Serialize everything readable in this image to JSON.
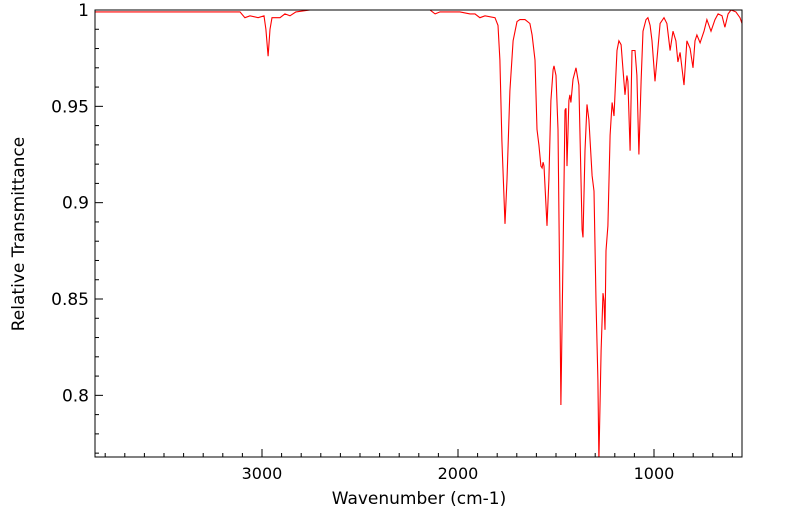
{
  "chart_data": {
    "type": "line",
    "title": "",
    "xlabel": "Wavenumber (cm-1)",
    "ylabel": "Relative Transmittance",
    "xlim": [
      3852,
      551
    ],
    "ylim": [
      0.768,
      1.0
    ],
    "x_ticks": [
      3000,
      2000,
      1000
    ],
    "x_tick_labels": [
      "3000",
      "2000",
      "1000"
    ],
    "y_ticks": [
      0.8,
      0.85,
      0.9,
      0.95,
      1
    ],
    "y_tick_labels": [
      "0.8",
      "0.85",
      "0.9",
      "0.95",
      "1"
    ],
    "grid": false,
    "series": [
      {
        "name": "spectrum",
        "color": "#ff0000",
        "x": [
          3852,
          3112,
          3087,
          3061,
          3020,
          2990,
          2980,
          2969,
          2959,
          2949,
          2908,
          2883,
          2857,
          2827,
          2755,
          2143,
          2117,
          2092,
          1990,
          1939,
          1913,
          1888,
          1862,
          1811,
          1796,
          1786,
          1776,
          1760,
          1750,
          1735,
          1719,
          1699,
          1684,
          1658,
          1633,
          1622,
          1607,
          1597,
          1587,
          1577,
          1571,
          1566,
          1561,
          1546,
          1536,
          1526,
          1515,
          1510,
          1500,
          1490,
          1480,
          1475,
          1464,
          1454,
          1449,
          1444,
          1434,
          1429,
          1424,
          1413,
          1398,
          1383,
          1367,
          1362,
          1352,
          1342,
          1332,
          1316,
          1306,
          1296,
          1286,
          1281,
          1270,
          1260,
          1255,
          1250,
          1245,
          1235,
          1224,
          1214,
          1204,
          1189,
          1179,
          1168,
          1158,
          1148,
          1138,
          1133,
          1122,
          1112,
          1097,
          1087,
          1077,
          1066,
          1056,
          1041,
          1031,
          1020,
          1010,
          995,
          985,
          969,
          949,
          934,
          918,
          903,
          888,
          878,
          867,
          847,
          832,
          816,
          801,
          791,
          781,
          765,
          745,
          730,
          709,
          689,
          673,
          653,
          638,
          622,
          607,
          582,
          561,
          551
        ],
        "y": [
          0.999,
          0.999,
          0.996,
          0.997,
          0.996,
          0.997,
          0.99,
          0.976,
          0.99,
          0.996,
          0.996,
          0.998,
          0.997,
          0.999,
          1.0,
          1.0,
          0.998,
          0.999,
          0.999,
          0.998,
          0.998,
          0.996,
          0.997,
          0.996,
          0.992,
          0.974,
          0.932,
          0.889,
          0.912,
          0.958,
          0.984,
          0.994,
          0.995,
          0.995,
          0.993,
          0.987,
          0.974,
          0.938,
          0.93,
          0.919,
          0.918,
          0.921,
          0.919,
          0.888,
          0.912,
          0.953,
          0.969,
          0.971,
          0.966,
          0.938,
          0.849,
          0.795,
          0.875,
          0.948,
          0.949,
          0.919,
          0.953,
          0.956,
          0.952,
          0.964,
          0.97,
          0.961,
          0.886,
          0.882,
          0.927,
          0.951,
          0.943,
          0.914,
          0.906,
          0.849,
          0.808,
          0.766,
          0.823,
          0.853,
          0.849,
          0.834,
          0.875,
          0.888,
          0.935,
          0.952,
          0.945,
          0.979,
          0.984,
          0.982,
          0.969,
          0.956,
          0.966,
          0.963,
          0.927,
          0.979,
          0.979,
          0.966,
          0.925,
          0.963,
          0.989,
          0.995,
          0.996,
          0.992,
          0.984,
          0.963,
          0.974,
          0.993,
          0.996,
          0.993,
          0.979,
          0.989,
          0.984,
          0.973,
          0.978,
          0.961,
          0.984,
          0.98,
          0.97,
          0.984,
          0.987,
          0.983,
          0.989,
          0.995,
          0.989,
          0.995,
          0.998,
          0.997,
          0.991,
          0.998,
          1.0,
          0.999,
          0.996,
          0.993
        ]
      }
    ]
  }
}
